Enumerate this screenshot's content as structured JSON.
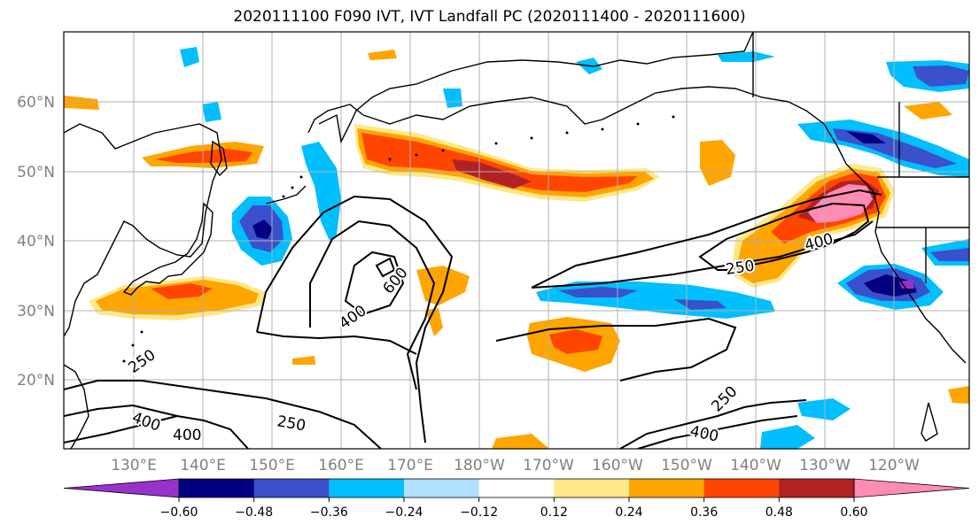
{
  "title": "2020111100 F090 IVT, IVT Landfall PC (2020111400 - 2020111600)",
  "map": {
    "lon_labels": [
      "130°E",
      "140°E",
      "150°E",
      "160°E",
      "170°E",
      "180°W",
      "170°W",
      "160°W",
      "150°W",
      "140°W",
      "130°W",
      "120°W"
    ],
    "lat_labels": [
      "60°N",
      "50°N",
      "40°N",
      "30°N",
      "20°N"
    ],
    "contour_labels": [
      "250",
      "400",
      "600",
      "400",
      "250",
      "400",
      "250",
      "400",
      "250",
      "400"
    ],
    "label_color": "#808080",
    "grid_color": "#b0b0b0"
  },
  "colorbar": {
    "tick_labels": [
      "−0.60",
      "−0.48",
      "−0.36",
      "−0.24",
      "−0.12",
      "0.12",
      "0.24",
      "0.36",
      "0.48",
      "0.60"
    ],
    "colors": [
      "#9932cc",
      "#000080",
      "#3a50cc",
      "#00bfff",
      "#b0e0ff",
      "#ffffff",
      "#ffe888",
      "#ffa500",
      "#ff4500",
      "#b22222",
      "#ff8cb4"
    ]
  }
}
